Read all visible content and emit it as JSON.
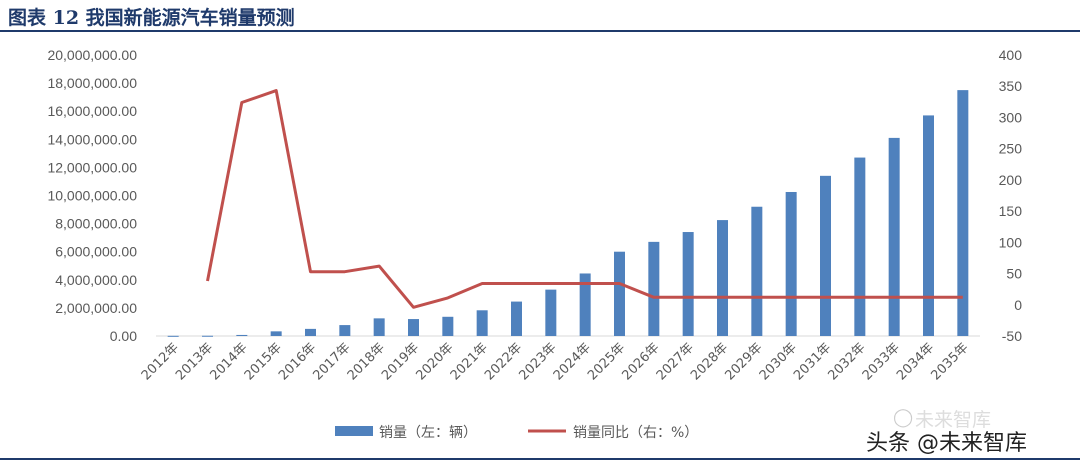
{
  "title": "图表 12 我国新能源汽车销量预测",
  "watermark": {
    "source": "未来智库",
    "account": "头条 @未来智库",
    "icon": "wechat-icon"
  },
  "colors": {
    "bars": "#4f81bd",
    "line": "#c0504d",
    "title": "#1f3a6b"
  },
  "chart_data": {
    "type": "bar+line",
    "categories": [
      "2012年",
      "2013年",
      "2014年",
      "2015年",
      "2016年",
      "2017年",
      "2018年",
      "2019年",
      "2020年",
      "2021年",
      "2022年",
      "2023年",
      "2024年",
      "2025年",
      "2026年",
      "2027年",
      "2028年",
      "2029年",
      "2030年",
      "2031年",
      "2032年",
      "2033年",
      "2034年",
      "2035年"
    ],
    "left_axis": {
      "ylim": [
        0,
        20000000
      ],
      "ticks": [
        "0.00",
        "2,000,000.00",
        "4,000,000.00",
        "6,000,000.00",
        "8,000,000.00",
        "10,000,000.00",
        "12,000,000.00",
        "14,000,000.00",
        "16,000,000.00",
        "18,000,000.00",
        "20,000,000.00"
      ]
    },
    "right_axis": {
      "ylim": [
        -50,
        400
      ],
      "ticks": [
        "-50",
        "0",
        "50",
        "100",
        "150",
        "200",
        "250",
        "300",
        "350",
        "400"
      ]
    },
    "series": [
      {
        "name": "销量（左：辆）",
        "type": "bar",
        "axis": "left",
        "values": [
          13000,
          18000,
          75000,
          331000,
          507000,
          777000,
          1256000,
          1206000,
          1367000,
          1830000,
          2450000,
          3300000,
          4450000,
          6000000,
          6700000,
          7400000,
          8250000,
          9200000,
          10250000,
          11400000,
          12700000,
          14100000,
          15700000,
          17500000
        ]
      },
      {
        "name": "销量同比（右：%）",
        "type": "line",
        "axis": "right",
        "values": [
          null,
          38,
          324,
          343,
          53,
          53,
          62,
          -4,
          11,
          34,
          34,
          34,
          34,
          34,
          12,
          12,
          12,
          12,
          12,
          12,
          12,
          12,
          12,
          12
        ]
      }
    ],
    "legend": "bottom",
    "grid": false
  }
}
